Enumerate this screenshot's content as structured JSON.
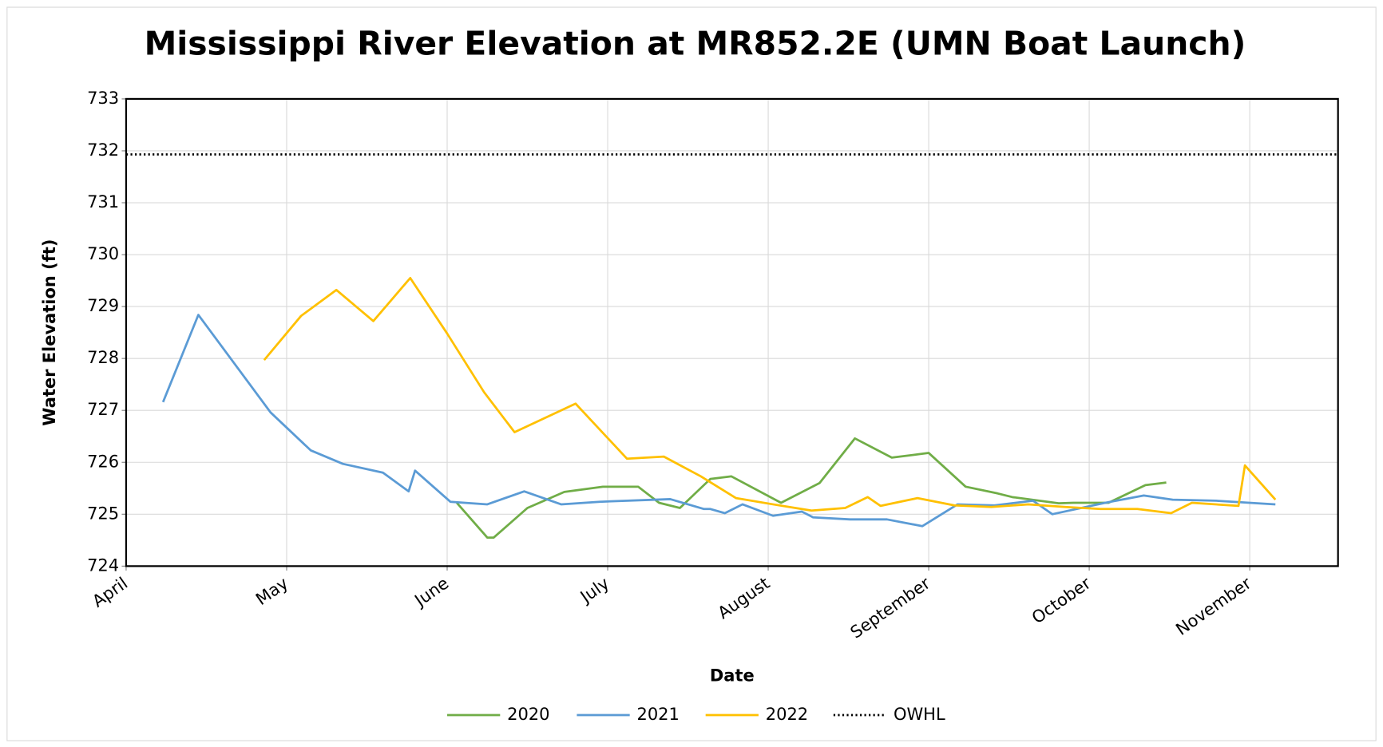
{
  "chart_data": {
    "type": "line",
    "title": "Mississippi River Elevation at MR852.2E (UMN Boat Launch)",
    "xlabel": "Date",
    "ylabel": "Water Elevation (ft)",
    "xlim": [
      0,
      7.55
    ],
    "xticks": [
      {
        "value": 0,
        "label": "April"
      },
      {
        "value": 1,
        "label": "May"
      },
      {
        "value": 2,
        "label": "June"
      },
      {
        "value": 3,
        "label": "July"
      },
      {
        "value": 4,
        "label": "August"
      },
      {
        "value": 5,
        "label": "September"
      },
      {
        "value": 6,
        "label": "October"
      },
      {
        "value": 7,
        "label": "November"
      }
    ],
    "ylim": [
      724,
      733
    ],
    "yticks": [
      724,
      725,
      726,
      727,
      728,
      729,
      730,
      731,
      732,
      733
    ],
    "grid": true,
    "legend": "bottom",
    "series": [
      {
        "name": "2020",
        "color": "#70ad47",
        "dash": "solid",
        "x": [
          2.06,
          2.25,
          2.29,
          2.5,
          2.73,
          2.97,
          3.19,
          3.32,
          3.45,
          3.64,
          3.77,
          4.08,
          4.32,
          4.54,
          4.77,
          5.0,
          5.23,
          5.43,
          5.52,
          5.81,
          5.9,
          6.12,
          6.35,
          6.48
        ],
        "values": [
          725.22,
          724.55,
          724.55,
          725.12,
          725.43,
          725.53,
          725.53,
          725.22,
          725.12,
          725.68,
          725.73,
          725.22,
          725.6,
          726.46,
          726.09,
          726.18,
          725.53,
          725.4,
          725.33,
          725.21,
          725.22,
          725.22,
          725.56,
          725.61
        ]
      },
      {
        "name": "2021",
        "color": "#5b9bd5",
        "dash": "solid",
        "x": [
          0.23,
          0.45,
          0.9,
          1.15,
          1.35,
          1.6,
          1.76,
          1.8,
          2.02,
          2.25,
          2.48,
          2.71,
          2.95,
          3.39,
          3.6,
          3.64,
          3.73,
          3.84,
          4.03,
          4.21,
          4.28,
          4.51,
          4.74,
          4.96,
          5.18,
          5.41,
          5.65,
          5.77,
          6.1,
          6.34,
          6.52,
          6.79,
          7.16
        ],
        "values": [
          727.16,
          728.84,
          726.96,
          726.23,
          725.97,
          725.8,
          725.44,
          725.84,
          725.24,
          725.19,
          725.44,
          725.19,
          725.24,
          725.29,
          725.1,
          725.1,
          725.02,
          725.19,
          724.97,
          725.05,
          724.94,
          724.9,
          724.9,
          724.77,
          725.19,
          725.17,
          725.26,
          725.0,
          725.22,
          725.36,
          725.28,
          725.26,
          725.19
        ]
      },
      {
        "name": "2022",
        "color": "#ffc000",
        "dash": "solid",
        "x": [
          0.86,
          1.09,
          1.31,
          1.54,
          1.77,
          2.0,
          2.23,
          2.42,
          2.8,
          3.12,
          3.35,
          3.58,
          3.8,
          4.03,
          4.27,
          4.48,
          4.62,
          4.7,
          4.93,
          5.16,
          5.39,
          5.62,
          5.85,
          6.07,
          6.3,
          6.51,
          6.64,
          6.93,
          6.97,
          7.16
        ],
        "values": [
          727.97,
          728.82,
          729.32,
          728.72,
          729.55,
          728.48,
          727.35,
          726.58,
          727.13,
          726.07,
          726.11,
          725.73,
          725.31,
          725.19,
          725.07,
          725.12,
          725.33,
          725.16,
          725.31,
          725.17,
          725.14,
          725.19,
          725.14,
          725.1,
          725.1,
          725.02,
          725.22,
          725.16,
          725.94,
          725.28
        ]
      },
      {
        "name": "OWHL",
        "color": "#000000",
        "dash": "dotted",
        "x": [
          0,
          7.55
        ],
        "values": [
          731.93,
          731.93
        ]
      }
    ]
  }
}
